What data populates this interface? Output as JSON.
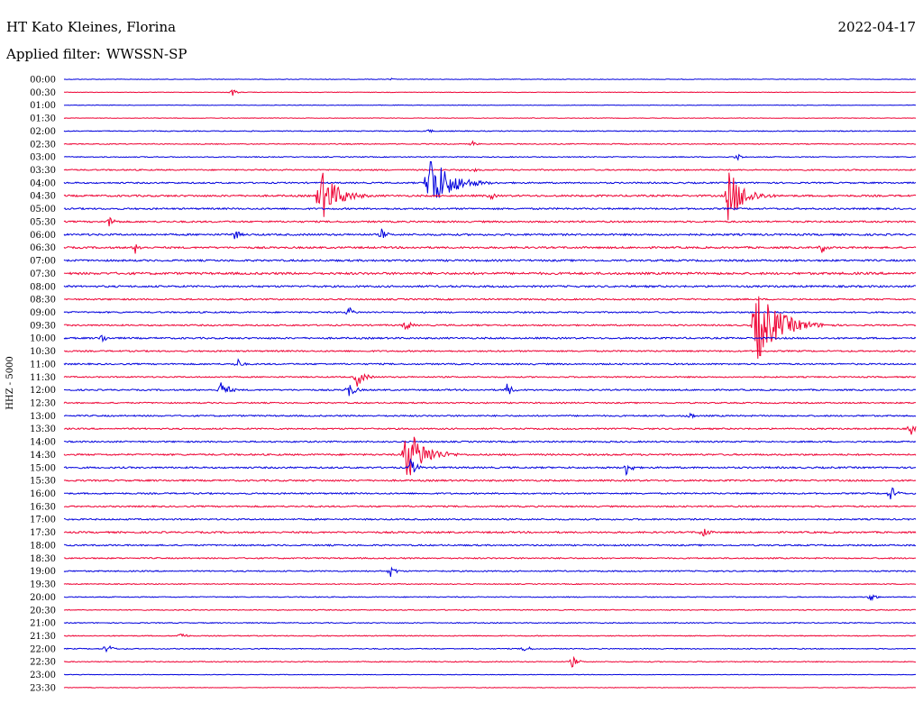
{
  "header": {
    "station": "HT Kato Kleines, Florina",
    "date": "2022-04-17",
    "filter_label": "Applied filter:",
    "filter_value": "WWSSN-SP",
    "channel": "HHZ - 5000"
  },
  "colors": {
    "even_row": "#0000dd",
    "odd_row": "#ee0033"
  },
  "chart_data": {
    "type": "line",
    "title": "HT Kato Kleines, Florina",
    "ylabel": "HHZ - 5000",
    "grid": false,
    "legend": "none",
    "rows": [
      "00:00",
      "00:30",
      "01:00",
      "01:30",
      "02:00",
      "02:30",
      "03:00",
      "03:30",
      "04:00",
      "04:30",
      "05:00",
      "05:30",
      "06:00",
      "06:30",
      "07:00",
      "07:30",
      "08:00",
      "08:30",
      "09:00",
      "09:30",
      "10:00",
      "10:30",
      "11:00",
      "11:30",
      "12:00",
      "12:30",
      "13:00",
      "13:30",
      "14:00",
      "14:30",
      "15:00",
      "15:30",
      "16:00",
      "16:30",
      "17:00",
      "17:30",
      "18:00",
      "18:30",
      "19:00",
      "19:30",
      "20:00",
      "20:30",
      "21:00",
      "21:30",
      "22:00",
      "22:30",
      "23:00",
      "23:30"
    ],
    "row_span_minutes": 30,
    "noise_level": [
      0.3,
      0.3,
      0.3,
      0.3,
      0.5,
      0.5,
      0.5,
      0.7,
      0.8,
      1.0,
      0.9,
      0.9,
      1.0,
      1.0,
      1.0,
      1.2,
      1.0,
      0.8,
      0.8,
      0.8,
      0.9,
      0.8,
      0.8,
      0.7,
      0.8,
      0.7,
      0.8,
      0.8,
      0.8,
      0.9,
      0.9,
      0.9,
      0.8,
      0.8,
      0.8,
      0.9,
      0.8,
      0.7,
      0.7,
      0.5,
      0.5,
      0.5,
      0.5,
      0.5,
      0.5,
      0.5,
      0.3,
      0.3
    ],
    "events": [
      {
        "row": 0,
        "minute": 11.5,
        "amplitude": 2
      },
      {
        "row": 1,
        "minute": 5.9,
        "amplitude": 5
      },
      {
        "row": 4,
        "minute": 12.8,
        "amplitude": 4
      },
      {
        "row": 5,
        "minute": 14.4,
        "amplitude": 4
      },
      {
        "row": 6,
        "minute": 23.7,
        "amplitude": 5
      },
      {
        "row": 7,
        "minute": 14.4,
        "amplitude": 4
      },
      {
        "row": 8,
        "minute": 12.8,
        "amplitude": 38
      },
      {
        "row": 9,
        "minute": 9.0,
        "amplitude": 32
      },
      {
        "row": 9,
        "minute": 23.4,
        "amplitude": 30
      },
      {
        "row": 9,
        "minute": 15.0,
        "amplitude": 6
      },
      {
        "row": 11,
        "minute": 1.6,
        "amplitude": 8
      },
      {
        "row": 12,
        "minute": 6.0,
        "amplitude": 7
      },
      {
        "row": 12,
        "minute": 11.2,
        "amplitude": 7
      },
      {
        "row": 13,
        "minute": 2.5,
        "amplitude": 7
      },
      {
        "row": 13,
        "minute": 26.7,
        "amplitude": 7
      },
      {
        "row": 18,
        "minute": 10.0,
        "amplitude": 7
      },
      {
        "row": 19,
        "minute": 24.3,
        "amplitude": 45
      },
      {
        "row": 19,
        "minute": 12.0,
        "amplitude": 8
      },
      {
        "row": 20,
        "minute": 1.3,
        "amplitude": 7
      },
      {
        "row": 22,
        "minute": 6.1,
        "amplitude": 7
      },
      {
        "row": 23,
        "minute": 10.3,
        "amplitude": 12
      },
      {
        "row": 24,
        "minute": 5.5,
        "amplitude": 12
      },
      {
        "row": 24,
        "minute": 10.0,
        "amplitude": 10
      },
      {
        "row": 24,
        "minute": 15.6,
        "amplitude": 8
      },
      {
        "row": 26,
        "minute": 22.0,
        "amplitude": 6
      },
      {
        "row": 27,
        "minute": 29.8,
        "amplitude": 8
      },
      {
        "row": 29,
        "minute": 12.0,
        "amplitude": 34
      },
      {
        "row": 30,
        "minute": 12.2,
        "amplitude": 10
      },
      {
        "row": 30,
        "minute": 19.8,
        "amplitude": 9
      },
      {
        "row": 32,
        "minute": 29.1,
        "amplitude": 9
      },
      {
        "row": 35,
        "minute": 22.5,
        "amplitude": 8
      },
      {
        "row": 38,
        "minute": 11.5,
        "amplitude": 7
      },
      {
        "row": 40,
        "minute": 28.4,
        "amplitude": 6
      },
      {
        "row": 43,
        "minute": 4.1,
        "amplitude": 6
      },
      {
        "row": 44,
        "minute": 1.5,
        "amplitude": 7
      },
      {
        "row": 44,
        "minute": 16.2,
        "amplitude": 6
      },
      {
        "row": 45,
        "minute": 17.9,
        "amplitude": 7
      }
    ]
  }
}
